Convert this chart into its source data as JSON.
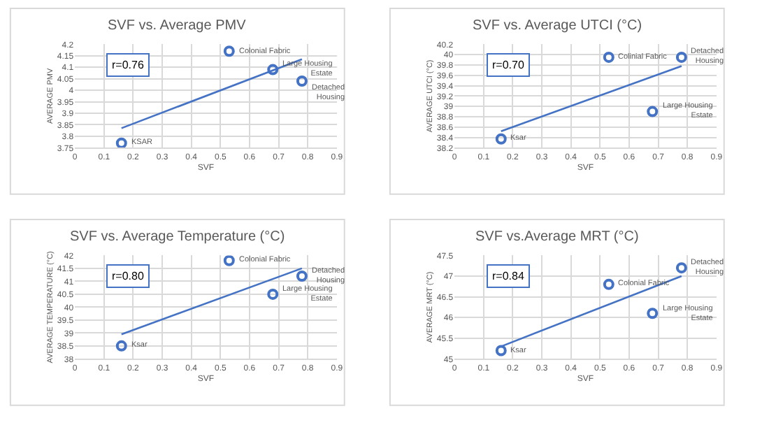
{
  "chart_data": [
    {
      "type": "scatter",
      "title": "SVF vs. Average PMV",
      "xlabel": "SVF",
      "ylabel": "AVERAGE PMV",
      "grid": true,
      "marker": "circle",
      "xlim": [
        0,
        0.9
      ],
      "xticks": [
        0,
        0.1,
        0.2,
        0.3,
        0.4,
        0.5,
        0.6,
        0.7,
        0.8,
        0.9
      ],
      "ylim": [
        3.75,
        4.2
      ],
      "yticks": [
        3.75,
        3.8,
        3.85,
        3.9,
        3.95,
        4,
        4.05,
        4.1,
        4.15,
        4.2
      ],
      "series": [
        {
          "type": "scatter",
          "color": "#4472c4",
          "x": [
            0.16,
            0.53,
            0.68,
            0.78
          ],
          "values": [
            3.77,
            4.17,
            4.09,
            4.04
          ]
        },
        {
          "type": "line",
          "color": "#4472c4",
          "marker": "none",
          "x": [
            0.16,
            0.78
          ],
          "values": [
            3.835,
            4.135
          ]
        }
      ],
      "annotations": [
        "r=0.76",
        {
          "text": "KSAR",
          "x": 0.16,
          "y": 3.77
        },
        {
          "text": "Colonial Fabric",
          "x": 0.53,
          "y": 4.17
        },
        {
          "text": "Large Housing\nEstate",
          "x": 0.68,
          "y": 4.09
        },
        {
          "text": "Detached\nHousing",
          "x": 0.78,
          "y": 4.04
        }
      ]
    },
    {
      "type": "scatter",
      "title": "SVF vs. Average UTCI (°C)",
      "xlabel": "SVF",
      "ylabel": "AVERAGE UTCI (°C)",
      "grid": true,
      "marker": "circle",
      "xlim": [
        0,
        0.9
      ],
      "xticks": [
        0,
        0.1,
        0.2,
        0.3,
        0.4,
        0.5,
        0.6,
        0.7,
        0.8,
        0.9
      ],
      "ylim": [
        38.2,
        40.2
      ],
      "yticks": [
        38.2,
        38.4,
        38.6,
        38.8,
        39,
        39.2,
        39.4,
        39.6,
        39.8,
        40,
        40.2
      ],
      "series": [
        {
          "type": "scatter",
          "color": "#4472c4",
          "x": [
            0.16,
            0.53,
            0.68,
            0.78
          ],
          "values": [
            38.37,
            39.95,
            38.9,
            39.95
          ]
        },
        {
          "type": "line",
          "color": "#4472c4",
          "marker": "none",
          "x": [
            0.16,
            0.78
          ],
          "values": [
            38.52,
            39.78
          ]
        }
      ],
      "annotations": [
        "r=0.70",
        {
          "text": "Ksar",
          "x": 0.16,
          "y": 38.37
        },
        {
          "text": "Colinial Fabric",
          "x": 0.53,
          "y": 39.95
        },
        {
          "text": "Large Housing\nEstate",
          "x": 0.68,
          "y": 38.9
        },
        {
          "text": "Detached\nHousing",
          "x": 0.78,
          "y": 39.95
        }
      ]
    },
    {
      "type": "scatter",
      "title": "SVF vs. Average Temperature (°C)",
      "xlabel": "SVF",
      "ylabel": "AVERAGE TEMPERATURE (°C)",
      "grid": true,
      "marker": "circle",
      "xlim": [
        0,
        0.9
      ],
      "xticks": [
        0,
        0.1,
        0.2,
        0.3,
        0.4,
        0.5,
        0.6,
        0.7,
        0.8,
        0.9
      ],
      "ylim": [
        38,
        42
      ],
      "yticks": [
        38,
        38.5,
        39,
        39.5,
        40,
        40.5,
        41,
        41.5,
        42
      ],
      "series": [
        {
          "type": "scatter",
          "color": "#4472c4",
          "x": [
            0.16,
            0.53,
            0.68,
            0.78
          ],
          "values": [
            38.5,
            41.8,
            40.5,
            41.2
          ]
        },
        {
          "type": "line",
          "color": "#4472c4",
          "marker": "none",
          "x": [
            0.16,
            0.78
          ],
          "values": [
            38.95,
            41.5
          ]
        }
      ],
      "annotations": [
        "r=0.80",
        {
          "text": "Ksar",
          "x": 0.16,
          "y": 38.5
        },
        {
          "text": "Colonial Fabric",
          "x": 0.53,
          "y": 41.8
        },
        {
          "text": "Large Housing\nEstate",
          "x": 0.68,
          "y": 40.5
        },
        {
          "text": "Detached\nHousing",
          "x": 0.78,
          "y": 41.2
        }
      ]
    },
    {
      "type": "scatter",
      "title": "SVF vs.Average MRT (°C)",
      "xlabel": "SVF",
      "ylabel": "AVERAGE MRT (°C)",
      "grid": true,
      "marker": "circle",
      "xlim": [
        0,
        0.9
      ],
      "xticks": [
        0,
        0.1,
        0.2,
        0.3,
        0.4,
        0.5,
        0.6,
        0.7,
        0.8,
        0.9
      ],
      "ylim": [
        45,
        47.5
      ],
      "yticks": [
        45,
        45.5,
        46,
        46.5,
        47,
        47.5
      ],
      "series": [
        {
          "type": "scatter",
          "color": "#4472c4",
          "x": [
            0.16,
            0.53,
            0.68,
            0.78
          ],
          "values": [
            45.2,
            46.8,
            46.1,
            47.2
          ]
        },
        {
          "type": "line",
          "color": "#4472c4",
          "marker": "none",
          "x": [
            0.16,
            0.78
          ],
          "values": [
            45.3,
            47.0
          ]
        }
      ],
      "annotations": [
        "r=0.84",
        {
          "text": "Ksar",
          "x": 0.16,
          "y": 45.2
        },
        {
          "text": "Colonial Fabric",
          "x": 0.53,
          "y": 46.8
        },
        {
          "text": "Large Housing\nEstate",
          "x": 0.68,
          "y": 46.1
        },
        {
          "text": "Detached\nHousing",
          "x": 0.78,
          "y": 47.2
        }
      ]
    }
  ]
}
